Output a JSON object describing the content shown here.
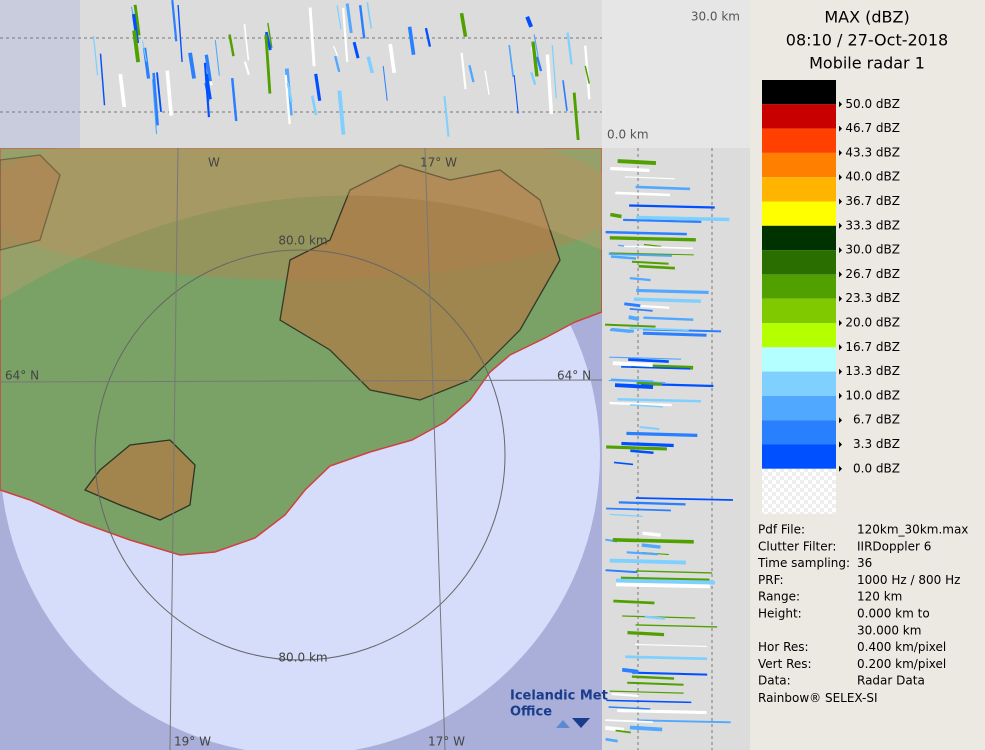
{
  "header": {
    "lines": [
      "MAX (dBZ)",
      "08:10 / 27-Oct-2018",
      "Mobile radar 1"
    ]
  },
  "legend": [
    {
      "label": "50.0 dBZ",
      "color": "#000000"
    },
    {
      "label": "46.7 dBZ",
      "color": "#c80000"
    },
    {
      "label": "43.3 dBZ",
      "color": "#ff4000"
    },
    {
      "label": "40.0 dBZ",
      "color": "#ff8000"
    },
    {
      "label": "36.7 dBZ",
      "color": "#ffb400"
    },
    {
      "label": "33.3 dBZ",
      "color": "#ffff00"
    },
    {
      "label": "30.0 dBZ",
      "color": "#003200"
    },
    {
      "label": "26.7 dBZ",
      "color": "#2a6e00"
    },
    {
      "label": "23.3 dBZ",
      "color": "#50a000"
    },
    {
      "label": "20.0 dBZ",
      "color": "#80c800"
    },
    {
      "label": "16.7 dBZ",
      "color": "#b4ff00"
    },
    {
      "label": "13.3 dBZ",
      "color": "#b4ffff"
    },
    {
      "label": "10.0 dBZ",
      "color": "#80d0ff"
    },
    {
      "label": "6.7 dBZ",
      "color": "#50a8ff"
    },
    {
      "label": "3.3 dBZ",
      "color": "#2880ff"
    },
    {
      "label": "0.0 dBZ",
      "color": "#0050ff"
    }
  ],
  "info": [
    {
      "label": "Pdf File:",
      "values": [
        "120km_30km.max"
      ]
    },
    {
      "label": "Clutter Filter:",
      "values": [
        "IIRDoppler 6"
      ]
    },
    {
      "label": "Time sampling:",
      "values": [
        "36"
      ]
    },
    {
      "label": "PRF:",
      "values": [
        "1000 Hz / 800 Hz"
      ]
    },
    {
      "label": "Range:",
      "values": [
        "120 km"
      ]
    },
    {
      "label": "Height:",
      "values": [
        "0.000 km to",
        "30.000 km"
      ]
    },
    {
      "label": "Hor Res:",
      "values": [
        "0.400 km/pixel"
      ]
    },
    {
      "label": "Vert Res:",
      "values": [
        "0.200 km/pixel"
      ]
    },
    {
      "label": "Data:",
      "values": [
        "Radar Data"
      ]
    }
  ],
  "footer": "Rainbow® SELEX-SI",
  "map": {
    "labels": [
      "30.0 km",
      "0.0 km",
      "80.0 km",
      "80.0 km",
      "64° N",
      "64° N",
      "17° W",
      "17° W",
      "19° W",
      "W"
    ],
    "logo": [
      "Icelandic Met",
      "Office"
    ]
  }
}
